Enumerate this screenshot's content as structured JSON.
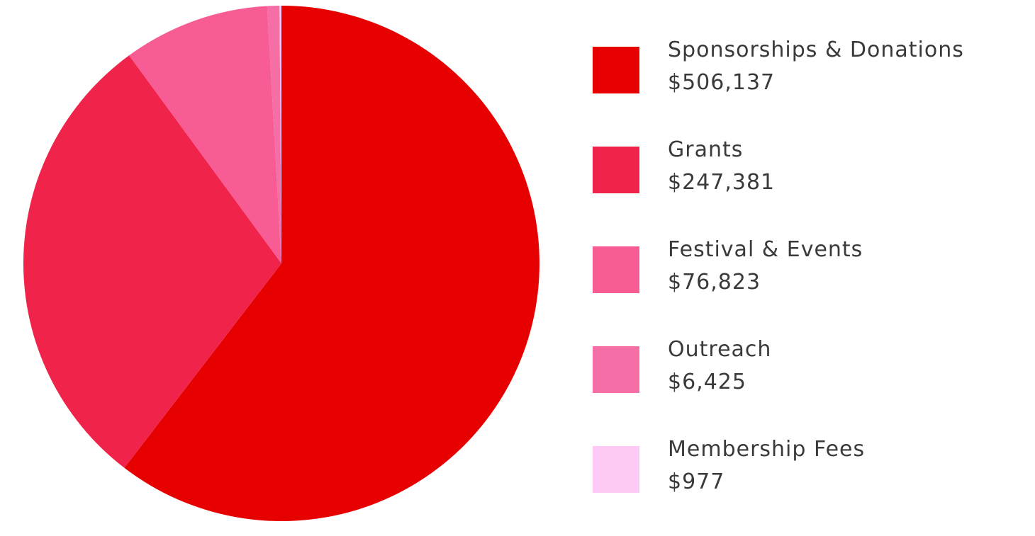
{
  "chart_data": {
    "type": "pie",
    "title": "",
    "legend_position": "right",
    "slices": [
      {
        "label": "Sponsorships & Donations",
        "value_text": "$506,137",
        "value": 506137,
        "color": "#e60000"
      },
      {
        "label": "Grants",
        "value_text": "$247,381",
        "value": 247381,
        "color": "#f0244a"
      },
      {
        "label": "Festival & Events",
        "value_text": "$76,823",
        "value": 76823,
        "color": "#f75c94"
      },
      {
        "label": "Outreach",
        "value_text": "$6,425",
        "value": 6425,
        "color": "#f56ea6"
      },
      {
        "label": "Membership Fees",
        "value_text": "$977",
        "value": 977,
        "color": "#fccaf5"
      }
    ]
  }
}
